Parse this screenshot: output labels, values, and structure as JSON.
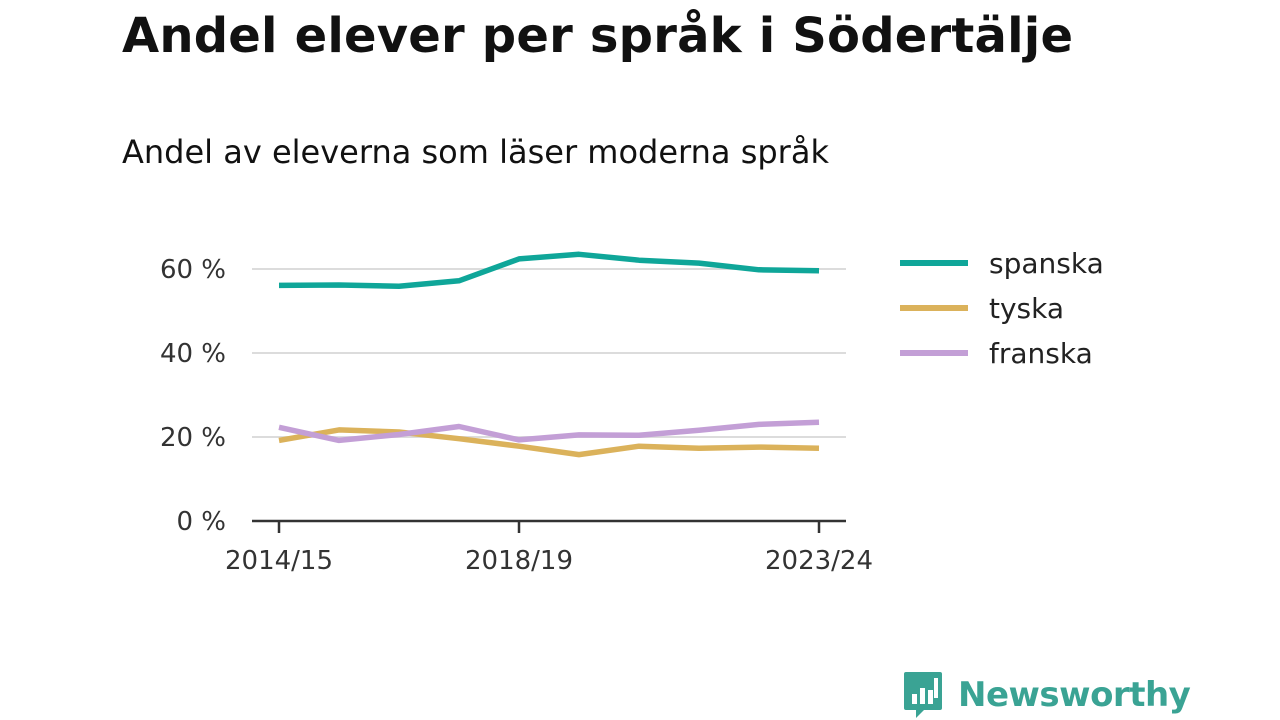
{
  "title": "Andel elever per språk i Södertälje",
  "subtitle": "Andel av eleverna som läser moderna språk",
  "brand": {
    "name": "Newsworthy",
    "icon": "newsworthy-logo-icon",
    "color": "#3aa394"
  },
  "chart_data": {
    "type": "line",
    "title": "Andel elever per språk i Södertälje",
    "subtitle": "Andel av eleverna som läser moderna språk",
    "xlabel": "",
    "ylabel": "",
    "x": [
      "2014/15",
      "2015/16",
      "2016/17",
      "2017/18",
      "2018/19",
      "2019/20",
      "2020/21",
      "2021/22",
      "2022/23",
      "2023/24"
    ],
    "x_tick_labels": [
      "2014/15",
      "2018/19",
      "2023/24"
    ],
    "y_tick_labels": [
      "0 %",
      "20 %",
      "40 %",
      "60 %"
    ],
    "y_ticks": [
      0,
      20,
      40,
      60
    ],
    "ylim": [
      0,
      63
    ],
    "grid": true,
    "legend_position": "right",
    "series": [
      {
        "name": "spanska",
        "color": "#0fa699",
        "values": [
          56.1,
          56.2,
          55.9,
          57.2,
          62.4,
          63.5,
          62.1,
          61.4,
          59.8,
          59.6
        ]
      },
      {
        "name": "tyska",
        "color": "#dbb25b",
        "values": [
          19.2,
          21.7,
          21.2,
          19.6,
          17.8,
          15.8,
          17.8,
          17.3,
          17.6,
          17.3
        ]
      },
      {
        "name": "franska",
        "color": "#c39fd6",
        "values": [
          22.3,
          19.2,
          20.6,
          22.5,
          19.3,
          20.5,
          20.4,
          21.6,
          23.0,
          23.5
        ]
      }
    ]
  }
}
